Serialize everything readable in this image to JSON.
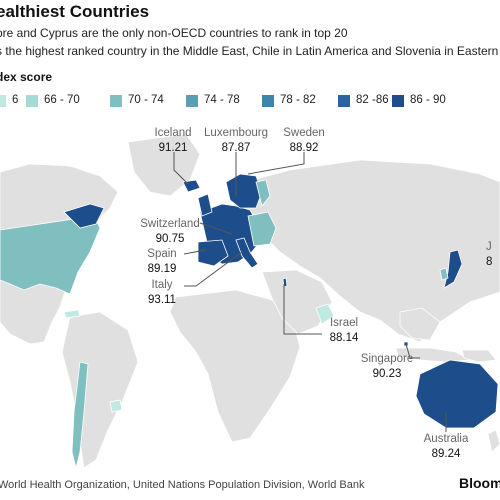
{
  "header": {
    "title": "ealthiest Countries",
    "subtitle_1": "ore and Cyprus are the only non-OECD countries to rank in top 20",
    "subtitle_2": "s the highest ranked country in the Middle East, Chile in Latin America and Slovenia in Eastern"
  },
  "legend": {
    "title": "dex score",
    "items": [
      {
        "label": "6",
        "color": "#bfe9e2"
      },
      {
        "label": "66 - 70",
        "color": "#a3dcd4"
      },
      {
        "label": "70 - 74",
        "color": "#7fbfbf"
      },
      {
        "label": "74 - 78",
        "color": "#5d9fb2"
      },
      {
        "label": "78 - 82",
        "color": "#3f84ad"
      },
      {
        "label": "82 -86",
        "color": "#2a63a4"
      },
      {
        "label": "86 - 90",
        "color": "#1e4d8c"
      }
    ]
  },
  "colors": {
    "land": "#e0e0e0",
    "land_stroke": "#ffffff",
    "leader": "#555555",
    "high": "#1e4d8c",
    "mid_high": "#2a63a4",
    "mid": "#7fbfbf",
    "light": "#bfe9e2"
  },
  "callouts": {
    "iceland": {
      "name": "Iceland",
      "value": "91.21"
    },
    "luxembourg": {
      "name": "Luxembourg",
      "value": "87.87"
    },
    "sweden": {
      "name": "Sweden",
      "value": "88.92"
    },
    "switzerland": {
      "name": "Switzerland",
      "value": "90.75"
    },
    "spain": {
      "name": "Spain",
      "value": "89.19"
    },
    "italy": {
      "name": "Italy",
      "value": "93.11"
    },
    "israel": {
      "name": "Israel",
      "value": "88.14"
    },
    "singapore": {
      "name": "Singapore",
      "value": "90.23"
    },
    "australia": {
      "name": "Australia",
      "value": "89.24"
    },
    "japan": {
      "name": "J",
      "value": "8"
    }
  },
  "footer": {
    "source": "World Health Organization, United Nations Population Division, World Bank",
    "brand": "Bloom"
  }
}
